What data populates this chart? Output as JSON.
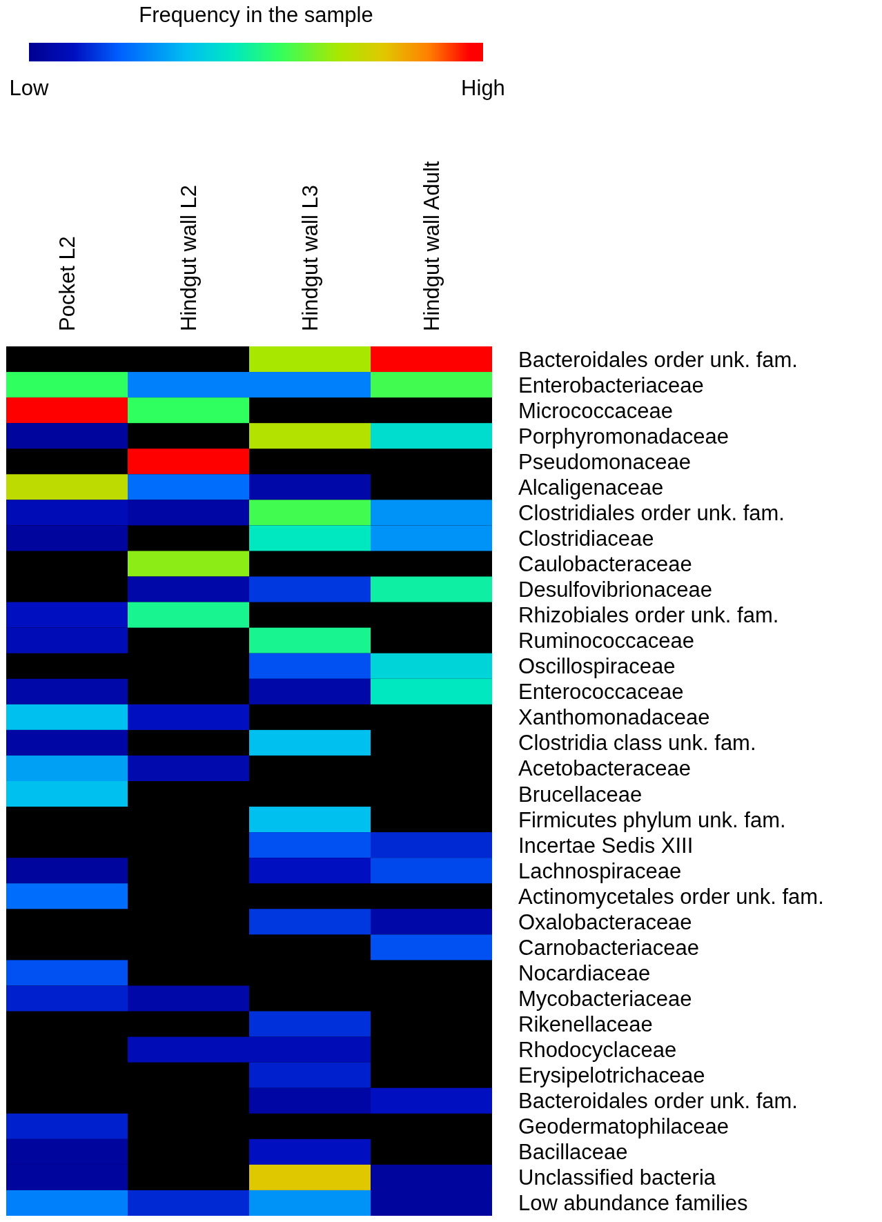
{
  "chart_data": {
    "type": "heatmap",
    "clabel": "Frequency in the sample",
    "clim": [
      0,
      1
    ],
    "cticks": [
      {
        "value": 0,
        "label": "Low"
      },
      {
        "value": 1,
        "label": "High"
      }
    ],
    "categories": [
      "Pocket L2",
      "Hindgut wall L2",
      "Hindgut wall L3",
      "Hindgut wall Adult"
    ],
    "y_categories": [
      "Bacteroidales order unk. fam.",
      "Enterobacteriaceae",
      "Micrococcaceae",
      "Porphyromonadaceae",
      "Pseudomonaceae",
      "Alcaligenaceae",
      "Clostridiales order unk. fam.",
      "Clostridiaceae",
      "Caulobacteraceae",
      "Desulfovibrionaceae",
      "Rhizobiales order unk. fam.",
      "Ruminococcaceae",
      "Oscillospiraceae",
      "Enterococcaceae",
      "Xanthomonadaceae",
      "Clostridia class unk. fam.",
      "Acetobacteraceae",
      "Brucellaceae",
      "Firmicutes phylum unk. fam.",
      "Incertae Sedis XIII",
      "Lachnospiraceae",
      "Actinomycetales order unk. fam.",
      "Oxalobacteraceae",
      "Carnobacteriaceae",
      "Nocardiaceae",
      "Mycobacteriaceae",
      "Rikenellaceae",
      "Rhodocyclaceae",
      "Erysipelotrichaceae",
      "Bacteroidales order unk. fam.",
      "Geodermatophilaceae",
      "Bacillaceae",
      "Unclassified bacteria",
      "Low abundance families"
    ],
    "cells": [
      [
        null,
        null,
        0.68,
        1.0
      ],
      [
        0.55,
        0.25,
        0.25,
        0.57
      ],
      [
        1.0,
        0.55,
        null,
        null
      ],
      [
        0.03,
        null,
        0.7,
        0.42
      ],
      [
        null,
        1.0,
        null,
        null
      ],
      [
        0.72,
        0.22,
        0.05,
        null
      ],
      [
        0.08,
        0.04,
        0.57,
        0.28
      ],
      [
        0.03,
        null,
        0.45,
        0.28
      ],
      [
        null,
        0.65,
        null,
        null
      ],
      [
        null,
        0.05,
        0.15,
        0.48
      ],
      [
        0.1,
        0.5,
        null,
        null
      ],
      [
        0.08,
        null,
        0.5,
        null
      ],
      [
        null,
        null,
        0.18,
        0.4
      ],
      [
        0.05,
        null,
        0.05,
        0.45
      ],
      [
        0.35,
        0.1,
        null,
        null
      ],
      [
        0.04,
        null,
        0.35,
        null
      ],
      [
        0.3,
        0.06,
        null,
        null
      ],
      [
        0.35,
        null,
        null,
        null
      ],
      [
        null,
        null,
        0.35,
        null
      ],
      [
        null,
        null,
        0.18,
        0.13
      ],
      [
        0.03,
        null,
        0.1,
        0.17
      ],
      [
        0.22,
        null,
        null,
        null
      ],
      [
        null,
        null,
        0.15,
        0.05
      ],
      [
        null,
        null,
        null,
        0.18
      ],
      [
        0.18,
        null,
        null,
        null
      ],
      [
        0.12,
        0.05,
        null,
        null
      ],
      [
        null,
        null,
        0.14,
        null
      ],
      [
        null,
        0.08,
        0.08,
        null
      ],
      [
        null,
        null,
        0.12,
        null
      ],
      [
        null,
        null,
        0.04,
        0.1
      ],
      [
        0.12,
        null,
        null,
        null
      ],
      [
        0.03,
        null,
        0.1,
        null
      ],
      [
        0.03,
        null,
        0.78,
        0.03
      ],
      [
        0.25,
        0.13,
        0.28,
        0.03
      ]
    ]
  }
}
